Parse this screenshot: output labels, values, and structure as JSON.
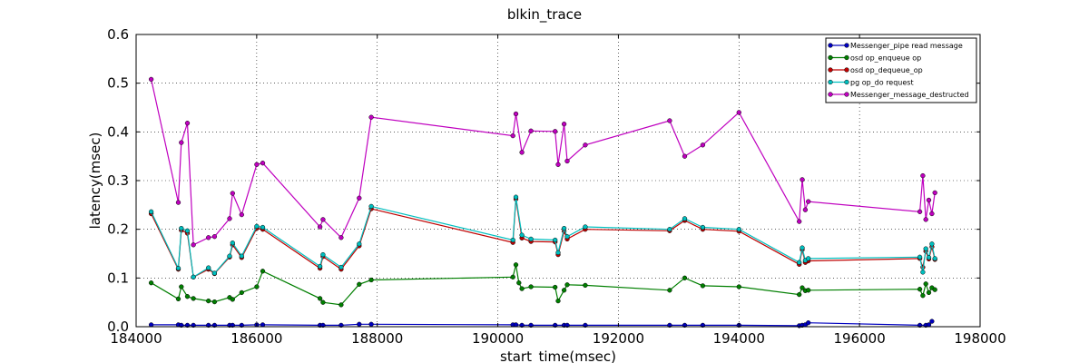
{
  "chart_data": {
    "type": "line",
    "title": "blkin_trace",
    "xlabel": "start_time(msec)",
    "ylabel": "latency(msec)",
    "xlim": [
      184000,
      198000
    ],
    "ylim": [
      0,
      0.6
    ],
    "xticks": [
      184000,
      186000,
      188000,
      190000,
      192000,
      194000,
      196000,
      198000
    ],
    "xtick_labels": [
      "184000",
      "186000",
      "188000",
      "190000",
      "192000",
      "194000",
      "196000",
      "198000"
    ],
    "yticks": [
      0.0,
      0.1,
      0.2,
      0.3,
      0.4,
      0.5,
      0.6
    ],
    "ytick_labels": [
      "0.0",
      "0.1",
      "0.2",
      "0.3",
      "0.4",
      "0.5",
      "0.6"
    ],
    "grid": true,
    "legend_position": "top-right",
    "series": [
      {
        "name": "Messenger_pipe read message",
        "color": "#0000bf",
        "points": [
          [
            184250,
            0.004
          ],
          [
            184700,
            0.004
          ],
          [
            184750,
            0.003
          ],
          [
            184850,
            0.003
          ],
          [
            184950,
            0.003
          ],
          [
            185200,
            0.003
          ],
          [
            185300,
            0.003
          ],
          [
            185550,
            0.003
          ],
          [
            185600,
            0.003
          ],
          [
            185750,
            0.003
          ],
          [
            186000,
            0.004
          ],
          [
            186100,
            0.004
          ],
          [
            187050,
            0.003
          ],
          [
            187100,
            0.003
          ],
          [
            187400,
            0.003
          ],
          [
            187700,
            0.005
          ],
          [
            187900,
            0.005
          ],
          [
            190250,
            0.004
          ],
          [
            190300,
            0.004
          ],
          [
            190400,
            0.003
          ],
          [
            190550,
            0.003
          ],
          [
            190950,
            0.003
          ],
          [
            191100,
            0.003
          ],
          [
            191150,
            0.003
          ],
          [
            191450,
            0.003
          ],
          [
            192850,
            0.003
          ],
          [
            193100,
            0.003
          ],
          [
            193400,
            0.003
          ],
          [
            194000,
            0.003
          ],
          [
            195000,
            0.002
          ],
          [
            195050,
            0.003
          ],
          [
            195100,
            0.004
          ],
          [
            195150,
            0.008
          ],
          [
            197000,
            0.003
          ],
          [
            197100,
            0.003
          ],
          [
            197150,
            0.004
          ],
          [
            197200,
            0.011
          ]
        ]
      },
      {
        "name": "osd op_enqueue op",
        "color": "#007f00",
        "points": [
          [
            184250,
            0.09
          ],
          [
            184700,
            0.057
          ],
          [
            184750,
            0.082
          ],
          [
            184850,
            0.062
          ],
          [
            184950,
            0.058
          ],
          [
            185200,
            0.053
          ],
          [
            185300,
            0.051
          ],
          [
            185550,
            0.06
          ],
          [
            185600,
            0.056
          ],
          [
            185750,
            0.07
          ],
          [
            186000,
            0.082
          ],
          [
            186100,
            0.114
          ],
          [
            187050,
            0.058
          ],
          [
            187100,
            0.05
          ],
          [
            187400,
            0.045
          ],
          [
            187700,
            0.087
          ],
          [
            187900,
            0.096
          ],
          [
            190250,
            0.102
          ],
          [
            190300,
            0.127
          ],
          [
            190350,
            0.09
          ],
          [
            190400,
            0.078
          ],
          [
            190550,
            0.082
          ],
          [
            190950,
            0.081
          ],
          [
            191000,
            0.053
          ],
          [
            191100,
            0.075
          ],
          [
            191150,
            0.086
          ],
          [
            191450,
            0.085
          ],
          [
            192850,
            0.075
          ],
          [
            193100,
            0.1
          ],
          [
            193400,
            0.084
          ],
          [
            194000,
            0.082
          ],
          [
            195000,
            0.066
          ],
          [
            195050,
            0.08
          ],
          [
            195100,
            0.074
          ],
          [
            195150,
            0.075
          ],
          [
            197000,
            0.077
          ],
          [
            197050,
            0.064
          ],
          [
            197100,
            0.088
          ],
          [
            197150,
            0.07
          ],
          [
            197200,
            0.08
          ],
          [
            197250,
            0.076
          ]
        ]
      },
      {
        "name": "osd op_dequeue_op",
        "color": "#bf0000",
        "points": [
          [
            184250,
            0.232
          ],
          [
            184700,
            0.118
          ],
          [
            184750,
            0.198
          ],
          [
            184850,
            0.192
          ],
          [
            184950,
            0.102
          ],
          [
            185200,
            0.118
          ],
          [
            185300,
            0.109
          ],
          [
            185550,
            0.143
          ],
          [
            185600,
            0.168
          ],
          [
            185750,
            0.142
          ],
          [
            186000,
            0.202
          ],
          [
            186100,
            0.2
          ],
          [
            187050,
            0.12
          ],
          [
            187100,
            0.144
          ],
          [
            187400,
            0.118
          ],
          [
            187700,
            0.166
          ],
          [
            187900,
            0.242
          ],
          [
            190250,
            0.173
          ],
          [
            190300,
            0.262
          ],
          [
            190400,
            0.182
          ],
          [
            190550,
            0.175
          ],
          [
            190950,
            0.174
          ],
          [
            191000,
            0.148
          ],
          [
            191100,
            0.196
          ],
          [
            191150,
            0.18
          ],
          [
            191450,
            0.2
          ],
          [
            192850,
            0.197
          ],
          [
            193100,
            0.218
          ],
          [
            193400,
            0.2
          ],
          [
            194000,
            0.196
          ],
          [
            195000,
            0.128
          ],
          [
            195050,
            0.158
          ],
          [
            195100,
            0.132
          ],
          [
            195150,
            0.135
          ],
          [
            197000,
            0.14
          ],
          [
            197050,
            0.122
          ],
          [
            197100,
            0.155
          ],
          [
            197150,
            0.139
          ],
          [
            197200,
            0.164
          ],
          [
            197250,
            0.138
          ]
        ]
      },
      {
        "name": "pg op_do request",
        "color": "#00bfbf",
        "points": [
          [
            184250,
            0.236
          ],
          [
            184700,
            0.12
          ],
          [
            184750,
            0.202
          ],
          [
            184850,
            0.197
          ],
          [
            184950,
            0.102
          ],
          [
            185200,
            0.121
          ],
          [
            185300,
            0.11
          ],
          [
            185550,
            0.145
          ],
          [
            185600,
            0.172
          ],
          [
            185750,
            0.145
          ],
          [
            186000,
            0.206
          ],
          [
            186100,
            0.204
          ],
          [
            187050,
            0.124
          ],
          [
            187100,
            0.148
          ],
          [
            187400,
            0.122
          ],
          [
            187700,
            0.17
          ],
          [
            187900,
            0.247
          ],
          [
            190250,
            0.178
          ],
          [
            190300,
            0.266
          ],
          [
            190400,
            0.188
          ],
          [
            190550,
            0.18
          ],
          [
            190950,
            0.178
          ],
          [
            191000,
            0.152
          ],
          [
            191100,
            0.202
          ],
          [
            191150,
            0.185
          ],
          [
            191450,
            0.205
          ],
          [
            192850,
            0.2
          ],
          [
            193100,
            0.222
          ],
          [
            193400,
            0.204
          ],
          [
            194000,
            0.2
          ],
          [
            195000,
            0.132
          ],
          [
            195050,
            0.162
          ],
          [
            195100,
            0.136
          ],
          [
            195150,
            0.14
          ],
          [
            197000,
            0.143
          ],
          [
            197050,
            0.112
          ],
          [
            197100,
            0.16
          ],
          [
            197150,
            0.142
          ],
          [
            197200,
            0.17
          ],
          [
            197250,
            0.14
          ]
        ]
      },
      {
        "name": "Messenger_message_destructed",
        "color": "#bf00bf",
        "points": [
          [
            184250,
            0.508
          ],
          [
            184700,
            0.255
          ],
          [
            184750,
            0.378
          ],
          [
            184850,
            0.418
          ],
          [
            184950,
            0.168
          ],
          [
            185200,
            0.183
          ],
          [
            185300,
            0.185
          ],
          [
            185550,
            0.222
          ],
          [
            185600,
            0.274
          ],
          [
            185750,
            0.23
          ],
          [
            186000,
            0.333
          ],
          [
            186100,
            0.336
          ],
          [
            187050,
            0.205
          ],
          [
            187100,
            0.22
          ],
          [
            187400,
            0.183
          ],
          [
            187700,
            0.264
          ],
          [
            187900,
            0.43
          ],
          [
            190250,
            0.392
          ],
          [
            190300,
            0.437
          ],
          [
            190400,
            0.358
          ],
          [
            190550,
            0.402
          ],
          [
            190950,
            0.401
          ],
          [
            191000,
            0.333
          ],
          [
            191100,
            0.416
          ],
          [
            191150,
            0.34
          ],
          [
            191450,
            0.373
          ],
          [
            192850,
            0.423
          ],
          [
            193100,
            0.35
          ],
          [
            193400,
            0.373
          ],
          [
            194000,
            0.44
          ],
          [
            195000,
            0.216
          ],
          [
            195050,
            0.302
          ],
          [
            195100,
            0.24
          ],
          [
            195150,
            0.257
          ],
          [
            197000,
            0.236
          ],
          [
            197050,
            0.31
          ],
          [
            197100,
            0.22
          ],
          [
            197150,
            0.26
          ],
          [
            197200,
            0.232
          ],
          [
            197250,
            0.275
          ]
        ]
      }
    ]
  }
}
